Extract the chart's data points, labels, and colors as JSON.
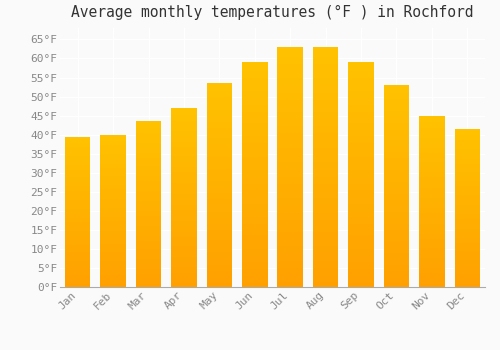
{
  "title": "Average monthly temperatures (°F ) in Rochford",
  "months": [
    "Jan",
    "Feb",
    "Mar",
    "Apr",
    "May",
    "Jun",
    "Jul",
    "Aug",
    "Sep",
    "Oct",
    "Nov",
    "Dec"
  ],
  "values": [
    39.5,
    40.0,
    43.5,
    47.0,
    53.5,
    59.0,
    63.0,
    63.0,
    59.0,
    53.0,
    45.0,
    41.5
  ],
  "bar_color_top": "#FFC200",
  "bar_color_bottom": "#FFA000",
  "background_color": "#FAFAFA",
  "grid_color": "#FFFFFF",
  "text_color": "#888888",
  "title_color": "#333333",
  "ylim": [
    0,
    68
  ],
  "yticks": [
    0,
    5,
    10,
    15,
    20,
    25,
    30,
    35,
    40,
    45,
    50,
    55,
    60,
    65
  ],
  "title_fontsize": 10.5,
  "tick_fontsize": 8,
  "font_family": "monospace",
  "bar_width": 0.72
}
